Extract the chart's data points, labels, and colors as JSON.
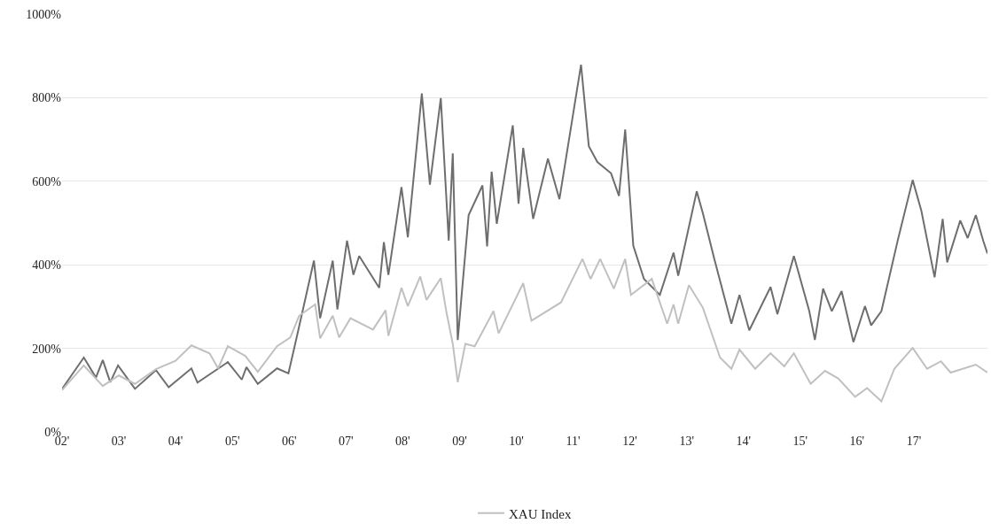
{
  "chart_data": {
    "type": "line",
    "xlim": [
      "2002-01-01",
      "2018-04-19"
    ],
    "xticks": [
      {
        "value": "2002-01-01",
        "label": "02'"
      },
      {
        "value": "2003-01-01",
        "label": "03'"
      },
      {
        "value": "2004-01-01",
        "label": "04'"
      },
      {
        "value": "2005-01-01",
        "label": "05'"
      },
      {
        "value": "2006-01-01",
        "label": "06'"
      },
      {
        "value": "2007-01-01",
        "label": "07'"
      },
      {
        "value": "2008-01-01",
        "label": "08'"
      },
      {
        "value": "2009-01-01",
        "label": "09'"
      },
      {
        "value": "2010-01-01",
        "label": "10'"
      },
      {
        "value": "2011-01-01",
        "label": "11'"
      },
      {
        "value": "2012-01-01",
        "label": "12'"
      },
      {
        "value": "2013-01-01",
        "label": "13'"
      },
      {
        "value": "2014-01-01",
        "label": "14'"
      },
      {
        "value": "2015-01-01",
        "label": "15'"
      },
      {
        "value": "2016-01-01",
        "label": "16'"
      },
      {
        "value": "2017-01-01",
        "label": "17'"
      }
    ],
    "ylim": [
      0,
      1000
    ],
    "yticks": [
      {
        "value": 0,
        "label": "0%"
      },
      {
        "value": 200,
        "label": "200%"
      },
      {
        "value": 400,
        "label": "400%"
      },
      {
        "value": 600,
        "label": "600%"
      },
      {
        "value": 800,
        "label": "800%"
      },
      {
        "value": 1000,
        "label": "1000%"
      }
    ],
    "grid": "y",
    "legend": "bottom",
    "marker": "none",
    "line_style": "solid",
    "series": [
      {
        "color": "#6e6e6e",
        "x": [
          "2002-01-01",
          "2002-05-21",
          "2002-08-07",
          "2002-09-20",
          "2002-11-07",
          "2002-12-27",
          "2003-04-15",
          "2003-08-28",
          "2003-11-18",
          "2004-04-12",
          "2004-05-21",
          "2004-12-02",
          "2005-03-02",
          "2005-04-01",
          "2005-06-13",
          "2005-10-15",
          "2005-12-27",
          "2006-02-18",
          "2006-06-09",
          "2006-07-19",
          "2006-10-08",
          "2006-11-07",
          "2007-01-08",
          "2007-02-18",
          "2007-03-27",
          "2007-08-03",
          "2007-09-02",
          "2007-10-01",
          "2007-12-24",
          "2008-02-03",
          "2008-05-03",
          "2008-06-24",
          "2008-09-02",
          "2008-10-23",
          "2008-11-18",
          "2008-12-20",
          "2009-02-28",
          "2009-05-28",
          "2009-06-27",
          "2009-07-26",
          "2009-08-28",
          "2009-12-09",
          "2010-01-15",
          "2010-02-14",
          "2010-04-19",
          "2010-07-23",
          "2010-10-05",
          "2011-02-21",
          "2011-04-12",
          "2011-06-06",
          "2011-09-02",
          "2011-10-23",
          "2011-12-02",
          "2012-01-23",
          "2012-04-01",
          "2012-07-12",
          "2012-10-08",
          "2012-11-07",
          "2013-03-06",
          "2013-04-15",
          "2013-06-27",
          "2013-10-15",
          "2013-12-06",
          "2014-02-07",
          "2014-06-24",
          "2014-08-07",
          "2014-11-21",
          "2015-02-28",
          "2015-04-05",
          "2015-05-28",
          "2015-07-23",
          "2015-09-24",
          "2015-12-09",
          "2016-02-21",
          "2016-04-01",
          "2016-06-06",
          "2016-09-20",
          "2016-12-24",
          "2017-02-18",
          "2017-05-14",
          "2017-07-05",
          "2017-08-03",
          "2017-10-26",
          "2017-12-13",
          "2018-02-03",
          "2018-03-24",
          "2018-04-19"
        ],
        "values": [
          103,
          178,
          130,
          172,
          119,
          159,
          103,
          148,
          107,
          152,
          118,
          167,
          125,
          155,
          115,
          152,
          140,
          226,
          410,
          272,
          410,
          293,
          458,
          376,
          421,
          345,
          454,
          376,
          586,
          466,
          810,
          592,
          799,
          458,
          667,
          220,
          519,
          590,
          444,
          623,
          498,
          734,
          546,
          680,
          510,
          654,
          557,
          879,
          684,
          646,
          619,
          565,
          724,
          446,
          366,
          328,
          429,
          374,
          576,
          523,
          414,
          259,
          328,
          243,
          347,
          282,
          421,
          289,
          220,
          343,
          289,
          337,
          215,
          301,
          255,
          289,
          460,
          603,
          529,
          370,
          510,
          406,
          506,
          464,
          519,
          456,
          427
        ]
      },
      {
        "name": "XAU Index",
        "color": "#c0c0c0",
        "x": [
          "2002-01-01",
          "2002-05-21",
          "2002-09-20",
          "2003-01-01",
          "2003-04-15",
          "2003-08-28",
          "2004-01-01",
          "2004-04-12",
          "2004-08-07",
          "2004-10-01",
          "2004-12-02",
          "2005-03-24",
          "2005-06-13",
          "2005-10-15",
          "2006-01-08",
          "2006-03-06",
          "2006-06-17",
          "2006-07-19",
          "2006-10-08",
          "2006-11-18",
          "2007-01-30",
          "2007-06-24",
          "2007-09-13",
          "2007-10-01",
          "2007-12-24",
          "2008-02-03",
          "2008-04-23",
          "2008-06-02",
          "2008-09-02",
          "2008-10-08",
          "2008-11-18",
          "2008-12-20",
          "2009-02-07",
          "2009-04-08",
          "2009-08-07",
          "2009-09-09",
          "2010-02-14",
          "2010-04-08",
          "2010-10-15",
          "2011-03-02",
          "2011-04-23",
          "2011-06-24",
          "2011-09-20",
          "2011-12-02",
          "2012-01-08",
          "2012-05-21",
          "2012-08-28",
          "2012-10-08",
          "2012-11-07",
          "2013-01-15",
          "2013-04-15",
          "2013-08-03",
          "2013-10-15",
          "2013-12-06",
          "2014-03-17",
          "2014-06-24",
          "2014-09-20",
          "2014-11-21",
          "2015-03-09",
          "2015-06-09",
          "2015-09-02",
          "2015-12-20",
          "2016-03-06",
          "2016-06-06",
          "2016-08-28",
          "2016-12-24",
          "2017-03-27",
          "2017-06-24",
          "2017-08-25",
          "2018-02-03",
          "2018-04-19"
        ],
        "values": [
          100,
          159,
          110,
          135,
          115,
          150,
          170,
          207,
          188,
          152,
          205,
          182,
          144,
          205,
          226,
          278,
          305,
          224,
          278,
          226,
          272,
          245,
          291,
          230,
          345,
          301,
          372,
          316,
          368,
          287,
          211,
          119,
          211,
          205,
          289,
          236,
          356,
          266,
          310,
          414,
          366,
          414,
          343,
          414,
          328,
          366,
          259,
          305,
          259,
          351,
          297,
          178,
          151,
          197,
          151,
          188,
          157,
          188,
          115,
          146,
          128,
          84,
          105,
          73,
          151,
          201,
          151,
          169,
          142,
          161,
          142
        ]
      }
    ]
  }
}
